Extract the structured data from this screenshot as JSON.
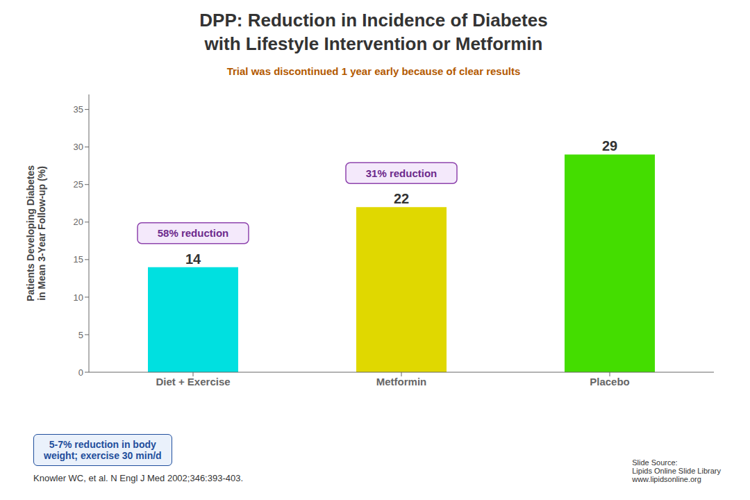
{
  "chart_data": {
    "type": "bar",
    "title": "DPP: Reduction in Incidence of Diabetes\nwith Lifestyle Intervention or Metformin",
    "categories": [
      "Diet + Exercise",
      "Metformin",
      "Placebo"
    ],
    "values": [
      14,
      22,
      29
    ],
    "colors": [
      "#00E0E0",
      "#E0D800",
      "#44DD00"
    ],
    "ylabel": "Patients Developing Diabetes\nin Mean 3-Year Follow-up (%)",
    "ylim": [
      0,
      37
    ],
    "yticks": [
      0,
      5,
      10,
      15,
      20,
      25,
      30,
      35
    ],
    "grid": false,
    "data_labels": true,
    "annotations": [
      "Trial was discontinued 1 year early because of clear results",
      "58% reduction",
      "31% reduction",
      "5-7% reduction in body\nweight; exercise 30 min/d",
      "Knowler WC, et al. N Engl J Med 2002;346:393-403.",
      "Slide Source:\nLipids Online Slide Library\nwww.lipidsonline.org"
    ]
  }
}
